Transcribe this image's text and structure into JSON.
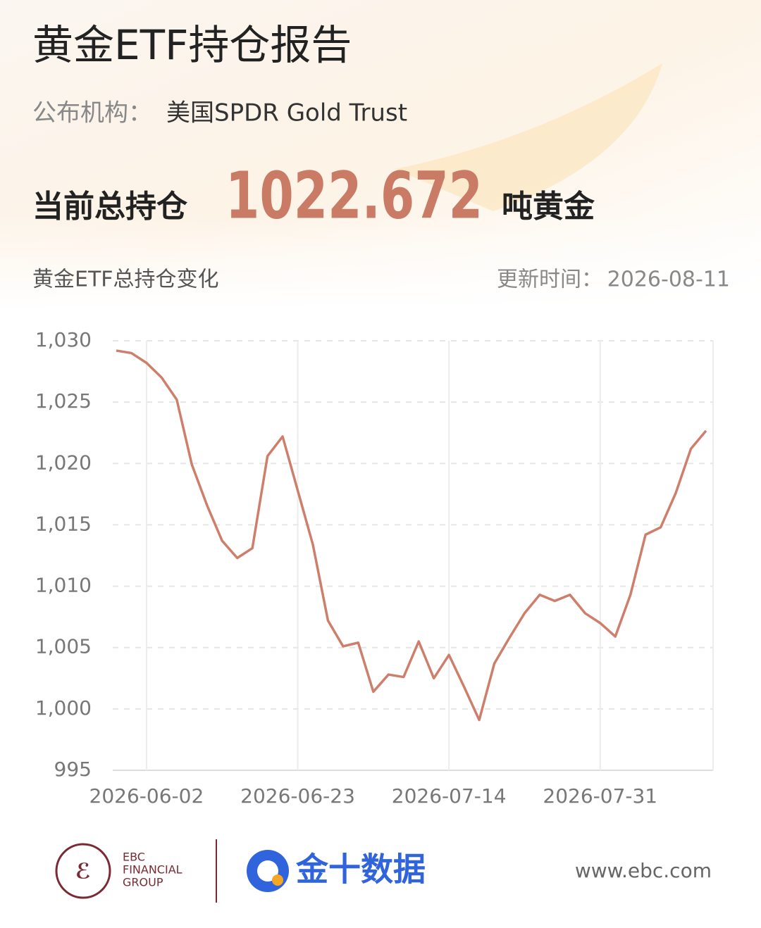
{
  "header": {
    "title": "黄金ETF持仓报告",
    "publisher_label": "公布机构：",
    "publisher": "美国SPDR Gold Trust",
    "holding_label": "当前总持仓",
    "holding_value": 1022.672,
    "holding_unit": "吨黄金",
    "update_label": "更新时间：",
    "update_date": "2026-08-11"
  },
  "chart_data": {
    "type": "line",
    "title": "黄金ETF总持仓变化",
    "color": "#cd7f6b",
    "categories": [
      null,
      null,
      "2026-06-02",
      null,
      null,
      null,
      null,
      null,
      null,
      null,
      null,
      null,
      "2026-06-23",
      null,
      null,
      null,
      null,
      null,
      null,
      null,
      null,
      null,
      "2026-07-14",
      null,
      null,
      null,
      null,
      null,
      null,
      null,
      null,
      null,
      "2026-07-31",
      null,
      null,
      null,
      null,
      null,
      null,
      null
    ],
    "values": [
      1029.2,
      1029.0,
      1028.2,
      1027.0,
      1025.2,
      1019.9,
      1016.6,
      1013.7,
      1012.3,
      1013.1,
      1020.6,
      1022.2,
      1017.8,
      1013.4,
      1007.2,
      1005.1,
      1005.4,
      1001.4,
      1002.8,
      1002.6,
      1005.5,
      1002.5,
      1004.4,
      1001.8,
      999.1,
      1003.7,
      1005.8,
      1007.8,
      1009.3,
      1008.8,
      1009.3,
      1007.8,
      1007.0,
      1005.9,
      1009.3,
      1014.2,
      1014.8,
      1017.6,
      1021.2,
      1022.672
    ],
    "ylim": [
      995,
      1030
    ],
    "yticks": [
      995,
      {
        "value": 1000,
        "label": "1,000"
      },
      {
        "value": 1005,
        "label": "1,005"
      },
      {
        "value": 1010,
        "label": "1,010"
      },
      {
        "value": 1015,
        "label": "1,015"
      },
      {
        "value": 1020,
        "label": "1,020"
      },
      {
        "value": 1025,
        "label": "1,025"
      },
      {
        "value": 1030,
        "label": "1,030"
      }
    ],
    "grid": true
  },
  "footer": {
    "ebc_line1": "EBC",
    "ebc_line2": "FINANCIAL",
    "ebc_line3": "GROUP",
    "brand": "金十数据",
    "website": "www.ebc.com"
  }
}
